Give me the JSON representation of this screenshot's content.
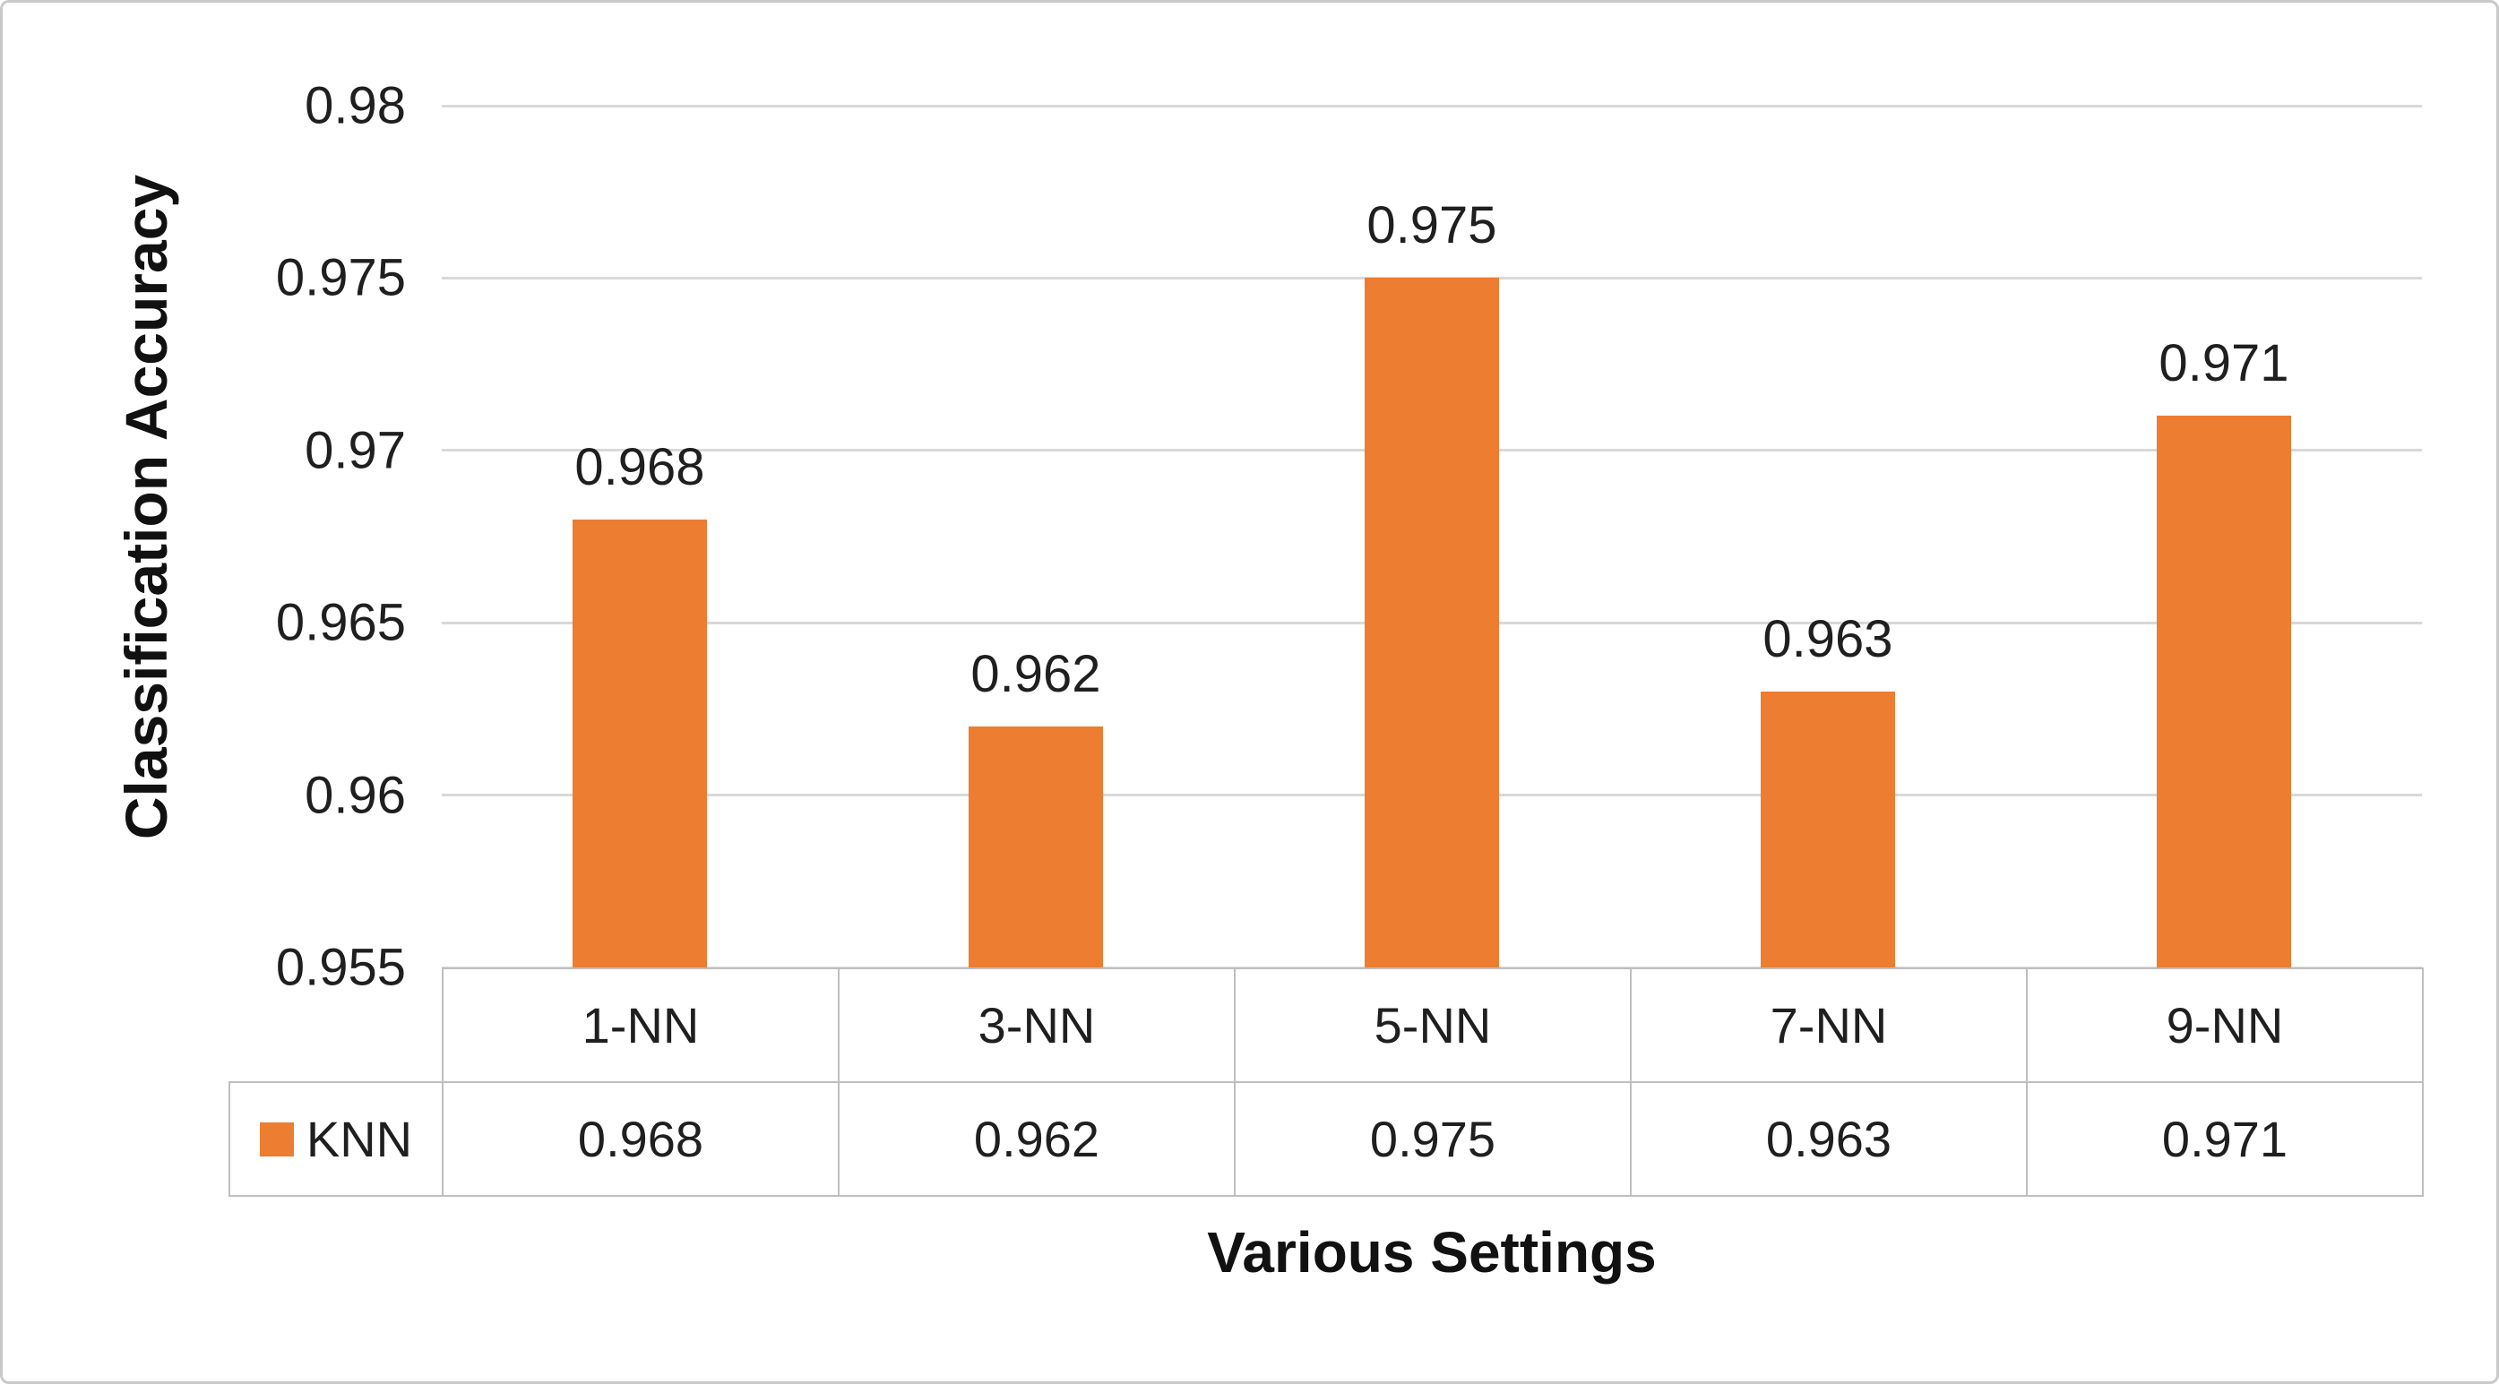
{
  "chart_data": {
    "type": "bar",
    "title": "",
    "categories": [
      "1-NN",
      "3-NN",
      "5-NN",
      "7-NN",
      "9-NN"
    ],
    "series": [
      {
        "name": "KNN",
        "color": "#ED7D31",
        "values": [
          0.968,
          0.962,
          0.975,
          0.963,
          0.971
        ]
      }
    ],
    "data_labels": [
      "0.968",
      "0.962",
      "0.975",
      "0.963",
      "0.971"
    ],
    "xlabel": "Various Settings",
    "ylabel": "Classification Accuracy",
    "ylim": [
      0.955,
      0.98
    ],
    "ytick_step": 0.005,
    "yticks": [
      "0.98",
      "0.975",
      "0.97",
      "0.965",
      "0.96",
      "0.955"
    ],
    "grid": "horizontal",
    "legend_position": "table-left",
    "table": {
      "legend_label": "KNN",
      "header": [
        "1-NN",
        "3-NN",
        "5-NN",
        "7-NN",
        "9-NN"
      ],
      "values": [
        "0.968",
        "0.962",
        "0.975",
        "0.963",
        "0.971"
      ]
    }
  },
  "colors": {
    "bar": "#ED7D31",
    "gridline": "#D9D9D9",
    "table_border": "#BFBFBF",
    "frame_border": "#C9C9C9",
    "text": "#1F1F1F"
  }
}
